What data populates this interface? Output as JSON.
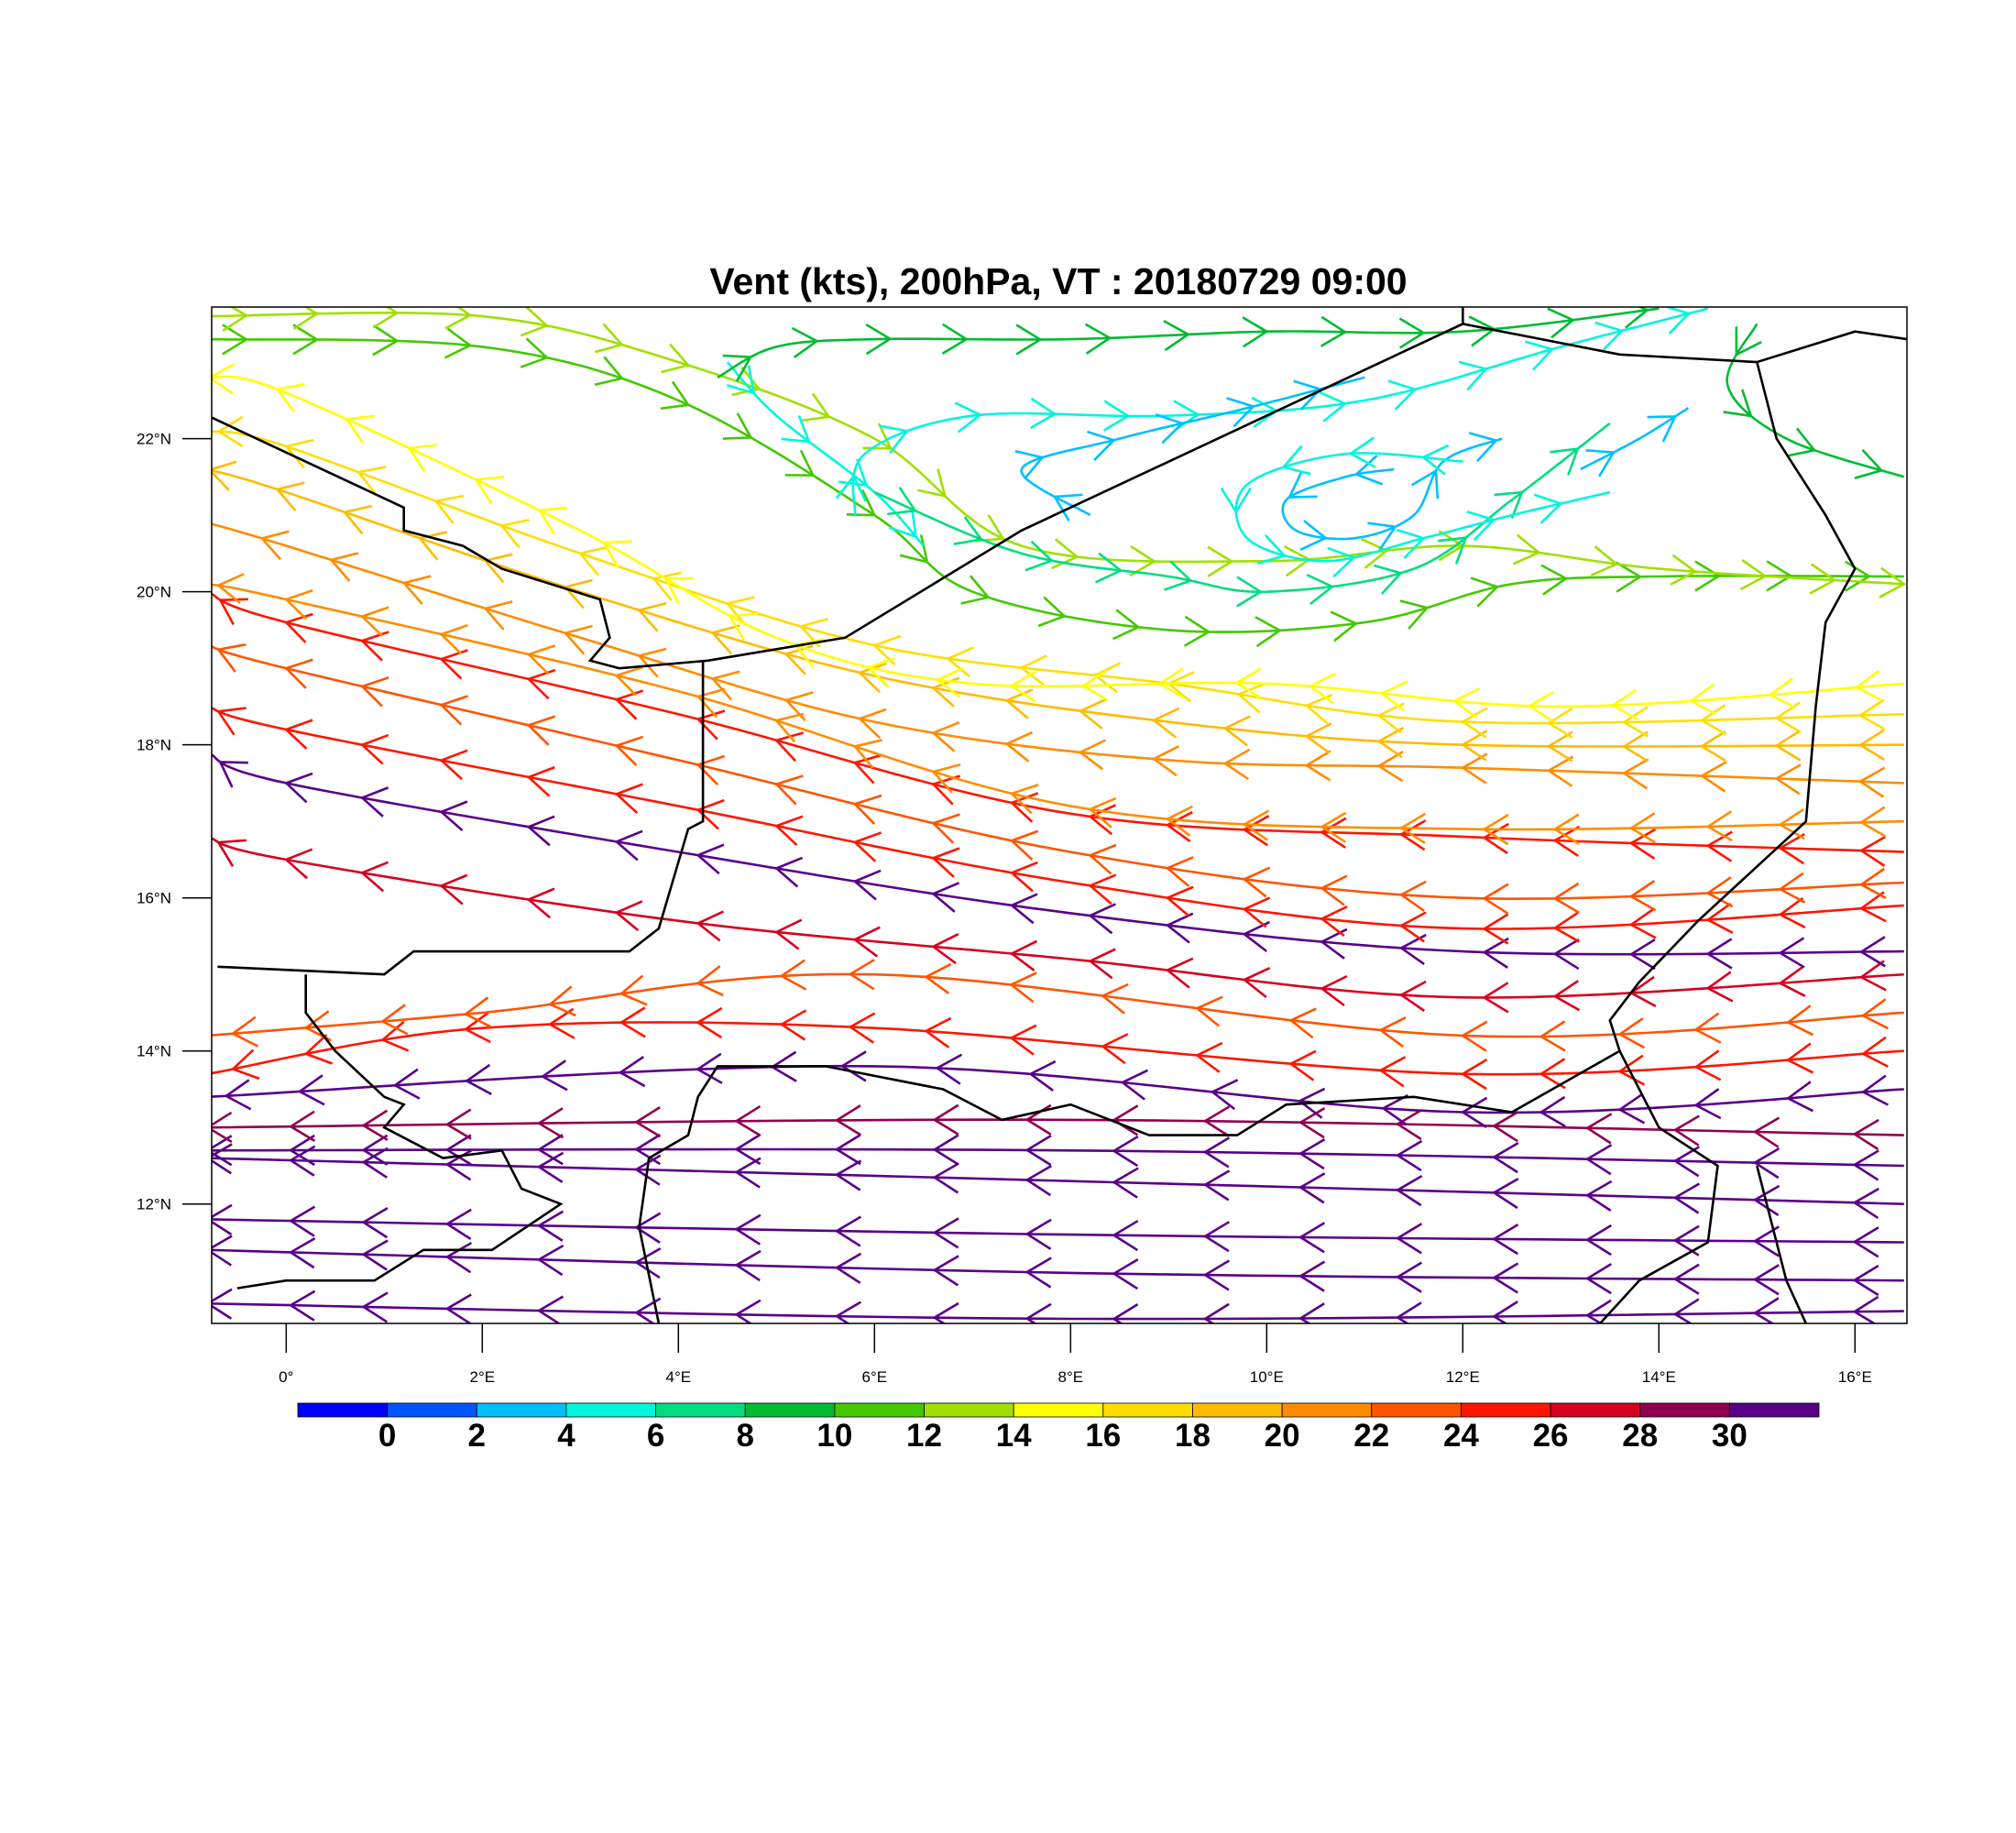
{
  "chart_data": {
    "type": "streamline",
    "title": "Vent (kts), 200hPa, VT : 20180729  09:00",
    "xlabel": "",
    "ylabel": "",
    "xlim": [
      -0.76,
      16.53
    ],
    "ylim": [
      10.44,
      23.72
    ],
    "x_ticks": [
      {
        "v": 0,
        "label": "0°"
      },
      {
        "v": 2,
        "label": "2°E"
      },
      {
        "v": 4,
        "label": "4°E"
      },
      {
        "v": 6,
        "label": "6°E"
      },
      {
        "v": 8,
        "label": "8°E"
      },
      {
        "v": 10,
        "label": "10°E"
      },
      {
        "v": 12,
        "label": "12°E"
      },
      {
        "v": 14,
        "label": "14°E"
      },
      {
        "v": 16,
        "label": "16°E"
      }
    ],
    "y_ticks": [
      {
        "v": 12,
        "label": "12°N"
      },
      {
        "v": 14,
        "label": "14°N"
      },
      {
        "v": 16,
        "label": "16°N"
      },
      {
        "v": 18,
        "label": "18°N"
      },
      {
        "v": 20,
        "label": "20°N"
      },
      {
        "v": 22,
        "label": "22°N"
      }
    ],
    "colorbar": {
      "labels": [
        "0",
        "2",
        "4",
        "6",
        "8",
        "10",
        "12",
        "14",
        "16",
        "18",
        "20",
        "22",
        "24",
        "26",
        "28",
        "30"
      ],
      "colors": [
        "#0000ff",
        "#0055ff",
        "#00bfff",
        "#00f5dd",
        "#00dd80",
        "#00bb33",
        "#44c800",
        "#a0e000",
        "#ffff00",
        "#ffdd00",
        "#ffbb00",
        "#ff8c00",
        "#ff5500",
        "#ff1500",
        "#d60020",
        "#900050",
        "#5a0088"
      ]
    },
    "streamlines": [
      {
        "speed": 31,
        "pts": [
          [
            16.5,
            10.6
          ],
          [
            8,
            10.5
          ],
          [
            -0.8,
            10.7
          ]
        ]
      },
      {
        "speed": 31,
        "pts": [
          [
            16.5,
            11.0
          ],
          [
            8,
            11.1
          ],
          [
            -0.8,
            11.4
          ]
        ]
      },
      {
        "speed": 31,
        "pts": [
          [
            16.5,
            11.5
          ],
          [
            8,
            11.6
          ],
          [
            -0.8,
            11.8
          ]
        ]
      },
      {
        "speed": 31,
        "pts": [
          [
            16.5,
            12.0
          ],
          [
            8,
            12.3
          ],
          [
            -0.8,
            12.6
          ]
        ]
      },
      {
        "speed": 31,
        "pts": [
          [
            16.5,
            12.5
          ],
          [
            8,
            12.7
          ],
          [
            -0.8,
            12.7
          ]
        ]
      },
      {
        "speed": 29,
        "pts": [
          [
            16.5,
            12.9
          ],
          [
            8,
            13.1
          ],
          [
            -0.8,
            13.0
          ]
        ]
      },
      {
        "speed": 31,
        "pts": [
          [
            16.5,
            13.5
          ],
          [
            12,
            13.2
          ],
          [
            6,
            13.8
          ],
          [
            -0.8,
            13.4
          ]
        ]
      },
      {
        "speed": 25,
        "pts": [
          [
            16.5,
            14.0
          ],
          [
            12,
            13.7
          ],
          [
            6,
            14.3
          ],
          [
            2,
            14.3
          ],
          [
            -0.8,
            13.7
          ]
        ]
      },
      {
        "speed": 23,
        "pts": [
          [
            16.5,
            14.5
          ],
          [
            12,
            14.2
          ],
          [
            6,
            15.0
          ],
          [
            2,
            14.5
          ],
          [
            -0.8,
            14.2
          ]
        ]
      },
      {
        "speed": 27,
        "pts": [
          [
            16.5,
            15.0
          ],
          [
            12,
            14.7
          ],
          [
            8,
            15.2
          ],
          [
            4,
            15.7
          ],
          [
            0,
            16.5
          ],
          [
            -0.8,
            16.8
          ]
        ]
      },
      {
        "speed": 31,
        "pts": [
          [
            16.5,
            15.3
          ],
          [
            12,
            15.3
          ],
          [
            8,
            15.8
          ],
          [
            4,
            16.6
          ],
          [
            0,
            17.5
          ],
          [
            -0.8,
            17.9
          ]
        ]
      },
      {
        "speed": 24,
        "pts": [
          [
            16.5,
            15.9
          ],
          [
            12,
            15.6
          ],
          [
            8,
            16.2
          ],
          [
            4,
            17.2
          ],
          [
            0,
            18.2
          ],
          [
            -0.8,
            18.5
          ]
        ]
      },
      {
        "speed": 22,
        "pts": [
          [
            16.5,
            16.2
          ],
          [
            12,
            16.0
          ],
          [
            8,
            16.6
          ],
          [
            4,
            17.8
          ],
          [
            0,
            19.0
          ],
          [
            -0.8,
            19.3
          ]
        ]
      },
      {
        "speed": 25,
        "pts": [
          [
            16.5,
            16.6
          ],
          [
            12,
            16.8
          ],
          [
            8,
            17.1
          ],
          [
            4,
            18.4
          ],
          [
            0,
            19.6
          ],
          [
            -0.8,
            20.0
          ]
        ]
      },
      {
        "speed": 20,
        "pts": [
          [
            16.5,
            17.0
          ],
          [
            12,
            16.9
          ],
          [
            8,
            17.2
          ],
          [
            4,
            18.7
          ],
          [
            0,
            19.9
          ],
          [
            -0.8,
            20.1
          ]
        ]
      },
      {
        "speed": 21,
        "pts": [
          [
            16.5,
            17.5
          ],
          [
            12,
            17.7
          ],
          [
            9,
            17.8
          ],
          [
            6,
            18.3
          ],
          [
            3,
            19.4
          ],
          [
            0,
            20.6
          ],
          [
            -0.8,
            20.9
          ]
        ]
      },
      {
        "speed": 19,
        "pts": [
          [
            16.5,
            18.0
          ],
          [
            12,
            18.0
          ],
          [
            9,
            18.3
          ],
          [
            6,
            18.9
          ],
          [
            3,
            20.0
          ],
          [
            0,
            21.3
          ],
          [
            -0.8,
            21.6
          ]
        ]
      },
      {
        "speed": 16,
        "pts": [
          [
            16.5,
            18.4
          ],
          [
            12,
            18.3
          ],
          [
            9,
            18.8
          ],
          [
            6,
            19.3
          ],
          [
            3,
            20.5
          ],
          [
            0,
            21.9
          ],
          [
            -0.8,
            22.1
          ]
        ]
      },
      {
        "speed": 15,
        "pts": [
          [
            16.5,
            18.8
          ],
          [
            13,
            18.5
          ],
          [
            10,
            18.8
          ],
          [
            7,
            18.8
          ],
          [
            5,
            19.4
          ],
          [
            3,
            20.8
          ],
          [
            0,
            22.6
          ],
          [
            -0.8,
            22.8
          ]
        ]
      },
      {
        "speed": 10,
        "pts": [
          [
            -0.8,
            23.3
          ],
          [
            2,
            23.2
          ],
          [
            4,
            22.5
          ],
          [
            6,
            21.0
          ],
          [
            7,
            20.0
          ],
          [
            9,
            19.5
          ],
          [
            11,
            19.6
          ],
          [
            12.5,
            20.1
          ],
          [
            14,
            20.2
          ],
          [
            16.5,
            20.2
          ]
        ]
      },
      {
        "speed": 12,
        "pts": [
          [
            -0.8,
            23.6
          ],
          [
            2,
            23.6
          ],
          [
            4,
            23.0
          ],
          [
            6,
            22.0
          ],
          [
            7.5,
            20.6
          ],
          [
            10,
            20.4
          ],
          [
            12,
            20.6
          ],
          [
            14,
            20.3
          ],
          [
            16.5,
            20.1
          ]
        ]
      },
      {
        "speed": 5,
        "pts": [
          [
            4.5,
            23.0
          ],
          [
            5,
            22.3
          ],
          [
            6,
            21.3
          ],
          [
            6.5,
            20.6
          ]
        ]
      },
      {
        "speed": 9,
        "pts": [
          [
            4.4,
            22.8
          ],
          [
            5,
            23.2
          ],
          [
            6,
            23.3
          ],
          [
            8,
            23.3
          ],
          [
            10,
            23.4
          ],
          [
            12,
            23.4
          ],
          [
            14,
            23.7
          ]
        ]
      },
      {
        "speed": 5,
        "pts": [
          [
            5.8,
            21.0
          ],
          [
            5.9,
            21.8
          ],
          [
            7,
            22.3
          ],
          [
            9,
            22.3
          ],
          [
            11,
            22.5
          ],
          [
            13,
            23.2
          ],
          [
            14.5,
            23.7
          ]
        ]
      },
      {
        "speed": 3,
        "pts": [
          [
            8.2,
            21.0
          ],
          [
            7.5,
            21.6
          ],
          [
            8.5,
            22.0
          ],
          [
            9.8,
            22.4
          ],
          [
            11,
            22.8
          ]
        ]
      },
      {
        "speed": 9,
        "pts": [
          [
            15,
            23.5
          ],
          [
            14.7,
            22.7
          ],
          [
            15.3,
            22.0
          ],
          [
            16.5,
            21.5
          ]
        ]
      },
      {
        "speed": 6,
        "pts": [
          [
            6,
            21.3
          ],
          [
            7.5,
            20.5
          ],
          [
            9,
            20.2
          ],
          [
            10,
            20.0
          ],
          [
            11.5,
            20.3
          ],
          [
            12.5,
            21.2
          ],
          [
            13.5,
            22.2
          ]
        ]
      },
      {
        "speed": 2,
        "pts": [
          [
            11.3,
            21.6
          ],
          [
            10.8,
            21.5
          ],
          [
            10.2,
            21.2
          ],
          [
            10.3,
            20.8
          ],
          [
            10.9,
            20.7
          ],
          [
            11.5,
            21.0
          ],
          [
            11.8,
            21.7
          ],
          [
            12.4,
            22.0
          ]
        ]
      },
      {
        "speed": 4,
        "pts": [
          [
            12,
            21.7
          ],
          [
            10.8,
            21.8
          ],
          [
            9.8,
            21.4
          ],
          [
            9.8,
            20.7
          ],
          [
            10.6,
            20.4
          ],
          [
            11.6,
            20.7
          ],
          [
            12.5,
            21.0
          ],
          [
            13.5,
            21.3
          ]
        ]
      },
      {
        "speed": 3,
        "pts": [
          [
            13.2,
            21.6
          ],
          [
            13.8,
            22.0
          ],
          [
            14.3,
            22.4
          ]
        ]
      }
    ],
    "borders": [
      [
        [
          -0.8,
          22.3
        ],
        [
          1.2,
          21.1
        ],
        [
          1.2,
          20.8
        ],
        [
          1.8,
          20.6
        ],
        [
          2.2,
          20.3
        ],
        [
          3.2,
          19.9
        ],
        [
          3.3,
          19.4
        ],
        [
          3.1,
          19.1
        ],
        [
          3.4,
          19.0
        ],
        [
          4.3,
          19.1
        ],
        [
          5.7,
          19.4
        ],
        [
          7.5,
          20.8
        ],
        [
          12,
          23.5
        ],
        [
          13.6,
          23.1
        ],
        [
          15,
          23.0
        ],
        [
          16,
          23.4
        ],
        [
          16.53,
          23.3
        ]
      ],
      [
        [
          12,
          23.5
        ],
        [
          12,
          23.72
        ]
      ],
      [
        [
          4.25,
          19.1
        ],
        [
          4.25,
          17.0
        ],
        [
          4.1,
          16.9
        ],
        [
          3.8,
          15.6
        ],
        [
          3.5,
          15.3
        ],
        [
          1.3,
          15.3
        ],
        [
          1.0,
          15.0
        ],
        [
          -0.7,
          15.1
        ]
      ],
      [
        [
          15,
          23.0
        ],
        [
          15.2,
          22.0
        ],
        [
          15.7,
          21.0
        ],
        [
          16.0,
          20.3
        ],
        [
          15.7,
          19.6
        ],
        [
          15.6,
          18.5
        ],
        [
          15.5,
          17.0
        ],
        [
          14.4,
          15.7
        ],
        [
          13.8,
          14.9
        ],
        [
          13.5,
          14.4
        ],
        [
          13.6,
          14.0
        ]
      ],
      [
        [
          13.6,
          14.0
        ],
        [
          12.5,
          13.2
        ],
        [
          11.5,
          13.4
        ],
        [
          10.2,
          13.3
        ],
        [
          9.7,
          12.9
        ],
        [
          8.8,
          12.9
        ],
        [
          8,
          13.3
        ],
        [
          7.3,
          13.1
        ],
        [
          6.7,
          13.5
        ],
        [
          5.5,
          13.8
        ],
        [
          4.4,
          13.8
        ],
        [
          4.2,
          13.4
        ],
        [
          4.1,
          12.9
        ],
        [
          3.7,
          12.6
        ],
        [
          3.6,
          11.7
        ],
        [
          3.8,
          10.44
        ]
      ],
      [
        [
          0.2,
          15.0
        ],
        [
          0.2,
          14.5
        ],
        [
          0.5,
          14.0
        ],
        [
          1.0,
          13.4
        ],
        [
          1.2,
          13.3
        ],
        [
          1.0,
          13.0
        ],
        [
          1.6,
          12.6
        ],
        [
          2.2,
          12.7
        ],
        [
          2.4,
          12.2
        ],
        [
          2.8,
          12.0
        ],
        [
          2.1,
          11.4
        ],
        [
          1.4,
          11.4
        ],
        [
          0.9,
          11.0
        ],
        [
          0.0,
          11.0
        ],
        [
          -0.5,
          10.9
        ]
      ],
      [
        [
          13.6,
          14.0
        ],
        [
          14.0,
          13.0
        ],
        [
          14.6,
          12.5
        ],
        [
          14.5,
          11.5
        ],
        [
          13.8,
          11.0
        ],
        [
          13.4,
          10.44
        ]
      ],
      [
        [
          15,
          12.5
        ],
        [
          15.3,
          11.0
        ],
        [
          15.5,
          10.44
        ]
      ]
    ]
  }
}
